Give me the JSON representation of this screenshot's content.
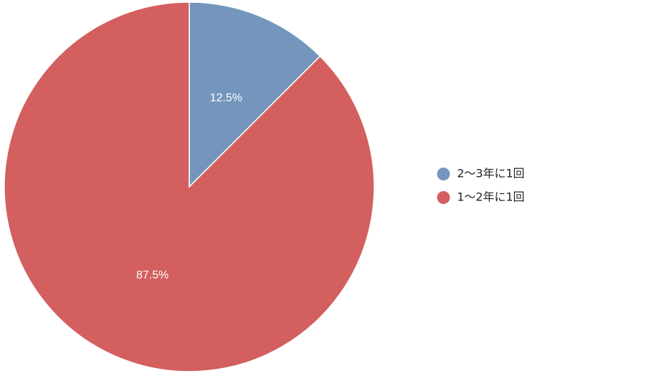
{
  "chart_data": {
    "type": "pie",
    "categories": [
      "2〜3年に1回",
      "1〜2年に1回"
    ],
    "values": [
      12.5,
      87.5
    ],
    "data_labels": [
      "12.5%",
      "87.5%"
    ],
    "colors": [
      "#7496bd",
      "#d35f5e"
    ],
    "start_angle": "12 o'clock",
    "direction": "clockwise",
    "legend": {
      "position": "right",
      "entries": [
        "2〜3年に1回",
        "1〜2年に1回"
      ]
    }
  }
}
